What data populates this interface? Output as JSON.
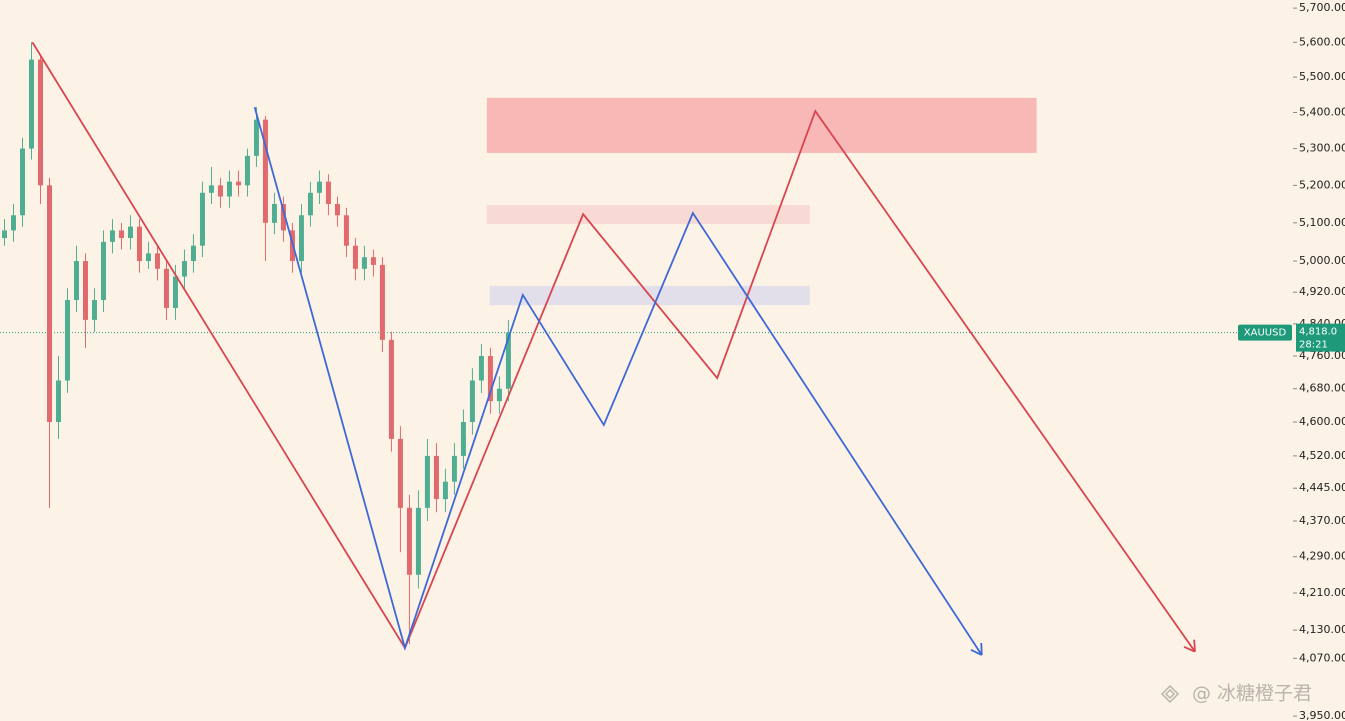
{
  "chart_data": {
    "type": "candlestick",
    "log_scale": true,
    "up_color": "#4fae92",
    "down_color": "#e06a6e",
    "x": [
      0.5,
      1.5,
      2.5,
      3.5,
      4.5,
      5.5,
      6.5,
      7.5,
      8.5,
      9.5,
      10.5,
      11.5,
      12.5,
      13.5,
      14.5,
      15.5,
      16.5,
      17.5,
      18.5,
      19.5,
      20.5,
      21.5,
      22.5,
      23.5,
      24.5,
      25.5,
      26.5,
      27.5,
      28.5,
      29.5,
      30.5,
      31.5,
      32.5,
      33.5,
      34.5,
      35.5,
      36.5,
      37.5,
      38.5,
      39.5,
      40.5,
      41.5,
      42.5,
      43.5,
      44.5,
      45.5,
      46.5,
      47.5,
      48.5,
      49.5,
      50.5,
      51.5,
      52.5,
      53.5,
      54.5,
      55.5,
      56.5
    ],
    "open": [
      5060,
      5080,
      5120,
      5300,
      5550,
      5200,
      4600,
      4700,
      4900,
      5000,
      4850,
      4900,
      5050,
      5080,
      5060,
      5090,
      5000,
      5020,
      4980,
      4880,
      4960,
      5000,
      5040,
      5180,
      5200,
      5170,
      5210,
      5200,
      5280,
      5380,
      5100,
      5150,
      5080,
      5000,
      5120,
      5180,
      5210,
      5150,
      5120,
      5040,
      4980,
      5010,
      4990,
      4800,
      4560,
      4400,
      4250,
      4400,
      4520,
      4420,
      4460,
      4520,
      4600,
      4700,
      4760,
      4650,
      4680
    ],
    "high": [
      5110,
      5150,
      5330,
      5600,
      5560,
      5220,
      4760,
      4930,
      5040,
      5020,
      4930,
      5080,
      5110,
      5100,
      5120,
      5110,
      5050,
      5040,
      5000,
      4990,
      5030,
      5070,
      5210,
      5250,
      5220,
      5240,
      5240,
      5300,
      5415,
      5390,
      5180,
      5170,
      5100,
      5150,
      5210,
      5240,
      5230,
      5170,
      5140,
      5060,
      5040,
      5030,
      5010,
      4820,
      4590,
      4430,
      4440,
      4560,
      4550,
      4490,
      4550,
      4630,
      4730,
      4790,
      4780,
      4710,
      4850
    ],
    "low": [
      5040,
      5050,
      5090,
      5270,
      5150,
      4400,
      4560,
      4670,
      4870,
      4780,
      4820,
      4870,
      5020,
      5030,
      5030,
      4970,
      4980,
      4950,
      4850,
      4850,
      4930,
      4970,
      5010,
      5150,
      5140,
      5140,
      5170,
      5170,
      5250,
      5000,
      5070,
      5050,
      4970,
      4970,
      5090,
      5150,
      5120,
      5090,
      5010,
      4950,
      4950,
      4960,
      4770,
      4530,
      4300,
      4100,
      4220,
      4370,
      4390,
      4390,
      4430,
      4490,
      4570,
      4670,
      4620,
      4620,
      4650
    ],
    "close": [
      5080,
      5120,
      5300,
      5550,
      5200,
      4600,
      4700,
      4900,
      5000,
      4850,
      4900,
      5050,
      5080,
      5060,
      5090,
      5000,
      5020,
      4980,
      4880,
      4960,
      5000,
      5040,
      5180,
      5200,
      5170,
      5210,
      5200,
      5280,
      5380,
      5100,
      5150,
      5080,
      5000,
      5120,
      5180,
      5210,
      5150,
      5120,
      5040,
      4980,
      5010,
      4990,
      4800,
      4560,
      4400,
      4250,
      4400,
      4520,
      4420,
      4460,
      4520,
      4600,
      4700,
      4760,
      4650,
      4680,
      4818
    ],
    "xlim": [
      0,
      137.8
    ],
    "ylim": [
      3940,
      5724
    ],
    "yticks": [
      {
        "value": 5700,
        "label": "5,700.00"
      },
      {
        "value": 5600,
        "label": "5,600.00"
      },
      {
        "value": 5500,
        "label": "5,500.00"
      },
      {
        "value": 5400,
        "label": "5,400.00"
      },
      {
        "value": 5300,
        "label": "5,300.00"
      },
      {
        "value": 5200,
        "label": "5,200.00"
      },
      {
        "value": 5100,
        "label": "5,100.00"
      },
      {
        "value": 5000,
        "label": "5,000.00"
      },
      {
        "value": 4920,
        "label": "4,920.00"
      },
      {
        "value": 4840,
        "label": "4,840.00"
      },
      {
        "value": 4760,
        "label": "4,760.00"
      },
      {
        "value": 4680,
        "label": "4,680.00"
      },
      {
        "value": 4600,
        "label": "4,600.00"
      },
      {
        "value": 4520,
        "label": "4,520.00"
      },
      {
        "value": 4445,
        "label": "4,445.00"
      },
      {
        "value": 4370,
        "label": "4,370.00"
      },
      {
        "value": 4290,
        "label": "4,290.00"
      },
      {
        "value": 4210,
        "label": "4,210.00"
      },
      {
        "value": 4130,
        "label": "4,130.00"
      },
      {
        "value": 4070,
        "label": "4,070.00"
      },
      {
        "value": 3950,
        "label": "3,950.00"
      }
    ],
    "zones": [
      {
        "color": "#f8b8b6",
        "x": [
          54.1,
          115.2
        ],
        "y": [
          5288,
          5441
        ]
      },
      {
        "color": "#f9d9d4",
        "x": [
          54.1,
          90
        ],
        "y": [
          5097,
          5147
        ]
      },
      {
        "color": "#e2dfea",
        "x": [
          54.4,
          90
        ],
        "y": [
          4887,
          4936
        ]
      }
    ],
    "zigzags": [
      {
        "color": "#d9454f",
        "x": [
          3.6,
          45,
          64.8,
          79.7,
          90.6,
          132.8
        ],
        "y": [
          5600,
          4092,
          5123,
          4706,
          5404,
          4084
        ]
      },
      {
        "color": "#3d68d8",
        "x": [
          28.3,
          45,
          58.1,
          67.1,
          77,
          109.1
        ],
        "y": [
          5415,
          4092,
          4913,
          4593,
          5126,
          4077
        ]
      }
    ],
    "price_line": {
      "value": 4818,
      "label": "4,818.0",
      "symbol": "XAUUSD",
      "countdown": "28:21",
      "color": "#1e9a7a"
    },
    "watermark": "@ 冰糖橙子君"
  }
}
